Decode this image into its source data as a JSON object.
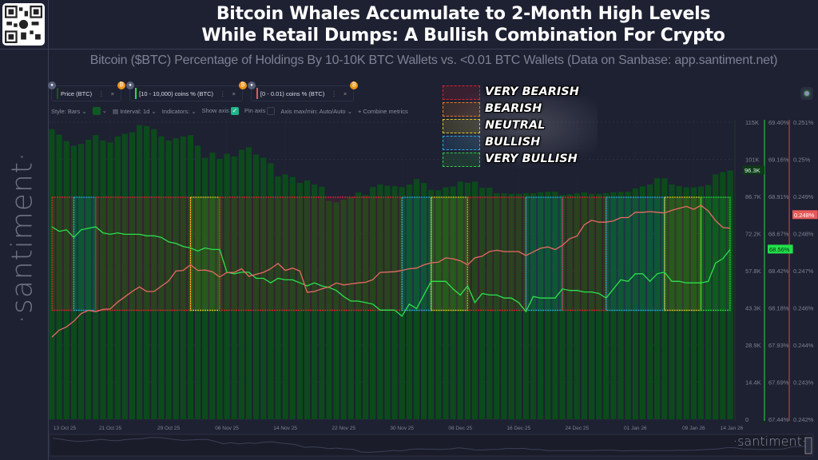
{
  "header": {
    "title_line1": "Bitcoin Whales Accumulate to 2-Month High Levels",
    "title_line2": "While Retail Dumps: A Bullish Combination For Crypto",
    "subtitle": "Bitcoin ($BTC) Percentage of Holdings By 10-10K BTC Wallets vs. <0.01 BTC Wallets (Data on Sanbase: app.santiment.net)"
  },
  "watermark": "·santiment·",
  "logo": "·santiment·",
  "metrics": [
    {
      "label": "Price (BTC)",
      "color": "#0f5a22"
    },
    {
      "label": "[10 - 10,000) coins % (BTC)",
      "color": "#22e04a"
    },
    {
      "label": "[0 - 0.01) coins % (BTC)",
      "color": "#e05a5a"
    }
  ],
  "options": {
    "style": "Style: Bars",
    "interval": "Interval: 1d",
    "indicators": "Indicators:",
    "show_axis": "Show axis",
    "show_axis_checked": true,
    "pin_axis": "Pin axis",
    "pin_axis_checked": false,
    "axis_maxmin": "Axis max/min: Auto/Auto",
    "combine": "+ Combine metrics"
  },
  "legend": [
    {
      "label": "VERY BEARISH",
      "color": "#e0202c"
    },
    {
      "label": "BEARISH",
      "color": "#f07a1a"
    },
    {
      "label": "NEUTRAL",
      "color": "#e0c820"
    },
    {
      "label": "BULLISH",
      "color": "#2aa8e0"
    },
    {
      "label": "VERY BULLISH",
      "color": "#30d040"
    }
  ],
  "chart_data": {
    "type": "bar+line",
    "x_start": "2025-10-13",
    "x_end": "2026-01-14",
    "x_tick_labels": [
      "13 Oct 25",
      "21 Oct 25",
      "29 Oct 25",
      "06 Nov 25",
      "14 Nov 25",
      "22 Nov 25",
      "30 Nov 25",
      "08 Dec 25",
      "16 Dec 25",
      "24 Dec 25",
      "01 Jan 26",
      "09 Jan 26",
      "14 Jan 26"
    ],
    "axes": {
      "price": {
        "ticks": [
          "0",
          "14.4K",
          "28.9K",
          "43.3K",
          "57.8K",
          "72.2K",
          "86.7K",
          "101K",
          "115K"
        ],
        "range": [
          0,
          115
        ],
        "last_label": "96.3K"
      },
      "whales": {
        "ticks": [
          "67.44%",
          "67.69%",
          "67.93%",
          "68.18%",
          "68.42%",
          "68.67%",
          "68.91%",
          "69.16%",
          "69.40%"
        ],
        "range": [
          67.44,
          69.4
        ],
        "last_label": "68.56%"
      },
      "retail": {
        "ticks": [
          "0.242%",
          "0.243%",
          "0.244%",
          "0.246%",
          "0.247%",
          "0.248%",
          "0.249%",
          "0.25%",
          "0.251%"
        ],
        "range": [
          0.242,
          0.251
        ],
        "last_label": "0.248%"
      }
    },
    "series": [
      {
        "name": "Price (BTC)",
        "type": "bar",
        "axis": "price",
        "unit": "K USD",
        "color": "#0c4a1c",
        "values": [
          112.3,
          110.2,
          107.7,
          105.9,
          106.6,
          108.2,
          110.0,
          107.9,
          107.2,
          109.5,
          110.5,
          111.1,
          113.9,
          113.5,
          112.3,
          109.5,
          107.9,
          108.8,
          109.5,
          110.0,
          105.9,
          101.2,
          103.2,
          100.8,
          102.8,
          101.7,
          104.3,
          105.3,
          102.5,
          101.2,
          99.1,
          94.0,
          94.8,
          93.8,
          91.5,
          92.4,
          90.9,
          90.0,
          84.5,
          84.0,
          85.0,
          86.0,
          87.8,
          86.8,
          89.9,
          90.9,
          90.4,
          90.2,
          89.9,
          90.9,
          93.0,
          91.5,
          88.8,
          88.6,
          89.8,
          90.1,
          92.0,
          91.5,
          92.0,
          89.6,
          89.6,
          87.5,
          87.5,
          87.3,
          87.3,
          87.5,
          87.5,
          87.9,
          88.1,
          88.1,
          86.8,
          87.1,
          87.5,
          87.8,
          87.3,
          87.3,
          87.5,
          87.9,
          88.0,
          88.1,
          89.3,
          90.1,
          90.9,
          93.3,
          93.3,
          90.9,
          90.3,
          89.8,
          89.8,
          90.1,
          90.7,
          94.8,
          95.7,
          96.3
        ]
      },
      {
        "name": "[10 - 10,000) coins % (BTC)",
        "type": "line",
        "axis": "whales",
        "color": "#2ee04e",
        "values": [
          68.71,
          68.68,
          68.69,
          68.64,
          68.69,
          68.7,
          68.71,
          68.67,
          68.66,
          68.67,
          68.66,
          68.66,
          68.66,
          68.65,
          68.65,
          68.64,
          68.61,
          68.6,
          68.58,
          68.57,
          68.55,
          68.57,
          68.56,
          68.56,
          68.41,
          68.4,
          68.41,
          68.41,
          68.37,
          68.37,
          68.34,
          68.37,
          68.36,
          68.36,
          68.34,
          68.32,
          68.34,
          68.32,
          68.31,
          68.29,
          68.25,
          68.22,
          68.22,
          68.21,
          68.2,
          68.16,
          68.16,
          68.16,
          68.12,
          68.2,
          68.17,
          68.26,
          68.35,
          68.35,
          68.35,
          68.3,
          68.26,
          68.32,
          68.21,
          68.27,
          68.26,
          68.26,
          68.24,
          68.24,
          68.21,
          68.15,
          68.25,
          68.24,
          68.24,
          68.24,
          68.3,
          68.29,
          68.29,
          68.28,
          68.28,
          68.27,
          68.24,
          68.3,
          68.36,
          68.35,
          68.4,
          68.4,
          68.35,
          68.4,
          68.41,
          68.35,
          68.35,
          68.34,
          68.34,
          68.34,
          68.35,
          68.47,
          68.5,
          68.56
        ]
      },
      {
        "name": "[0 - 0.01) coins % (BTC)",
        "type": "line",
        "axis": "retail",
        "color": "#e86a62",
        "values": [
          0.24449,
          0.2447,
          0.2448,
          0.24497,
          0.2452,
          0.2453,
          0.24526,
          0.24533,
          0.24534,
          0.24555,
          0.24571,
          0.24587,
          0.24601,
          0.24587,
          0.24587,
          0.24603,
          0.24619,
          0.24649,
          0.24651,
          0.24668,
          0.24651,
          0.24652,
          0.24647,
          0.24631,
          0.24645,
          0.24645,
          0.24656,
          0.24633,
          0.24639,
          0.24645,
          0.24656,
          0.24672,
          0.24651,
          0.24658,
          0.24649,
          0.24585,
          0.24587,
          0.24595,
          0.24601,
          0.24613,
          0.24607,
          0.2461,
          0.24613,
          0.24615,
          0.24623,
          0.24645,
          0.24646,
          0.24647,
          0.24651,
          0.24656,
          0.24658,
          0.24668,
          0.24674,
          0.24676,
          0.24689,
          0.24686,
          0.2468,
          0.24668,
          0.24689,
          0.24694,
          0.24708,
          0.24712,
          0.24708,
          0.24708,
          0.24708,
          0.24696,
          0.24707,
          0.24718,
          0.24722,
          0.24714,
          0.24727,
          0.24747,
          0.24755,
          0.24789,
          0.24803,
          0.24797,
          0.24797,
          0.24801,
          0.24811,
          0.24811,
          0.24827,
          0.24827,
          0.24829,
          0.24827,
          0.24825,
          0.24833,
          0.24839,
          0.24845,
          0.24836,
          0.24848,
          0.24831,
          0.24802,
          0.24781,
          0.24779
        ]
      }
    ],
    "sentiment_bands": [
      {
        "start": "2025-10-13",
        "end": "2025-10-16",
        "sentiment": "VERY BEARISH"
      },
      {
        "start": "2025-10-16",
        "end": "2025-10-19",
        "sentiment": "BULLISH"
      },
      {
        "start": "2025-10-19",
        "end": "2025-11-01",
        "sentiment": "VERY BEARISH"
      },
      {
        "start": "2025-11-01",
        "end": "2025-11-05",
        "sentiment": "NEUTRAL"
      },
      {
        "start": "2025-11-05",
        "end": "2025-11-30",
        "sentiment": "VERY BEARISH"
      },
      {
        "start": "2025-11-30",
        "end": "2025-12-04",
        "sentiment": "BULLISH"
      },
      {
        "start": "2025-12-04",
        "end": "2025-12-09",
        "sentiment": "NEUTRAL"
      },
      {
        "start": "2025-12-09",
        "end": "2025-12-17",
        "sentiment": "VERY BEARISH"
      },
      {
        "start": "2025-12-17",
        "end": "2025-12-22",
        "sentiment": "BULLISH"
      },
      {
        "start": "2025-12-22",
        "end": "2025-12-28",
        "sentiment": "VERY BEARISH"
      },
      {
        "start": "2025-12-28",
        "end": "2026-01-05",
        "sentiment": "BULLISH"
      },
      {
        "start": "2026-01-05",
        "end": "2026-01-10",
        "sentiment": "NEUTRAL"
      },
      {
        "start": "2026-01-10",
        "end": "2026-01-14",
        "sentiment": "VERY BULLISH"
      }
    ],
    "grid": true
  }
}
